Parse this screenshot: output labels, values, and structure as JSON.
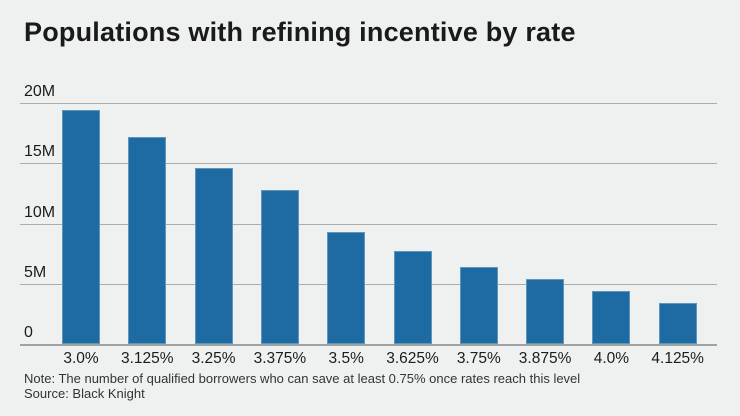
{
  "title": "Populations with refining incentive by rate",
  "note": "Note: The number of qualified borrowers who can save at least 0.75% once rates reach this level",
  "source": "Source: Black Knight",
  "colors": {
    "background": "#eff1f0",
    "bar": "#1e6ba3",
    "gridline": "#a9adab",
    "text": "#1c1c1c"
  },
  "chart_data": {
    "type": "bar",
    "title": "Populations with refining incentive by rate",
    "categories": [
      "3.0%",
      "3.125%",
      "3.25%",
      "3.375%",
      "3.5%",
      "3.625%",
      "3.75%",
      "3.875%",
      "4.0%",
      "4.125%"
    ],
    "values": [
      19.4,
      17.2,
      14.6,
      12.8,
      9.3,
      7.7,
      6.4,
      5.4,
      4.4,
      3.4
    ],
    "unit": "millions of borrowers",
    "xlabel": "",
    "ylabel": "",
    "ylim": [
      0,
      20
    ],
    "yticks_top_to_bottom": [
      "20M",
      "15M",
      "10M",
      "5M",
      "0"
    ],
    "grid": true,
    "legend": false,
    "note": "Note: The number of qualified borrowers who can save at least 0.75% once rates reach this level",
    "source": "Source: Black Knight"
  }
}
